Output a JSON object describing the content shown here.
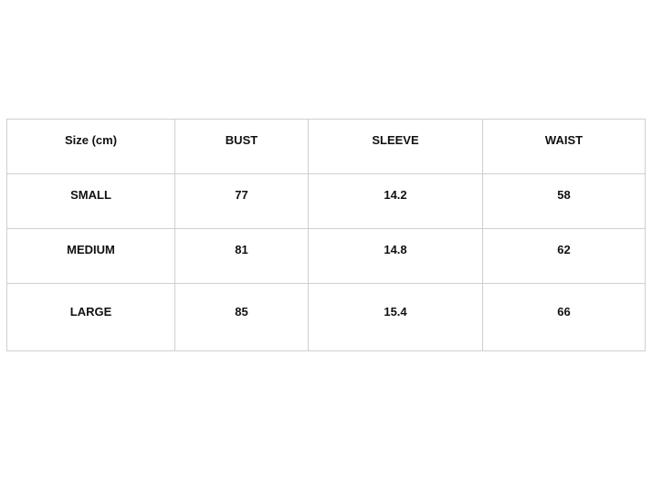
{
  "table": {
    "headers": [
      "Size (cm)",
      "BUST",
      "SLEEVE",
      "WAIST"
    ],
    "rows": [
      [
        "SMALL",
        "77",
        "14.2",
        "58"
      ],
      [
        "MEDIUM",
        "81",
        "14.8",
        "62"
      ],
      [
        "LARGE",
        "85",
        "15.4",
        "66"
      ]
    ]
  }
}
